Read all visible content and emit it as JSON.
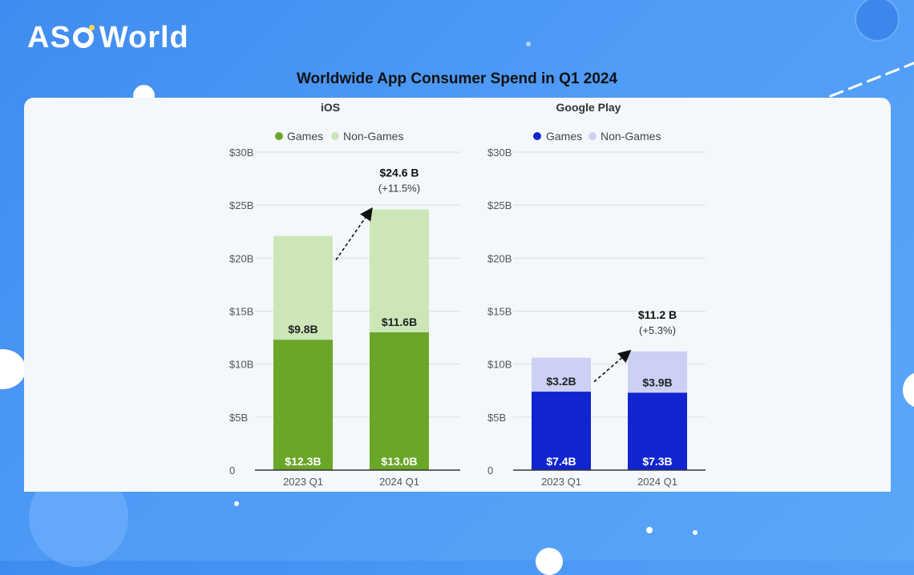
{
  "brand": {
    "logo_text_left": "AS",
    "logo_text_right": "World"
  },
  "title": "Worldwide App Consumer Spend in Q1 2024",
  "colors": {
    "ios_games": "#6aa628",
    "ios_non_games": "#cde6b8",
    "gp_games": "#1024d0",
    "gp_non_games": "#cdd0f5"
  },
  "chart_data": [
    {
      "type": "bar",
      "stacked": true,
      "title": "iOS",
      "categories": [
        "2023 Q1",
        "2024 Q1"
      ],
      "ylim": [
        0,
        30
      ],
      "yticks": [
        0,
        5,
        10,
        15,
        20,
        25,
        30
      ],
      "ytick_labels": [
        "0",
        "$5B",
        "$10B",
        "$15B",
        "$20B",
        "$25B",
        "$30B"
      ],
      "grid": true,
      "legend": "top",
      "series": [
        {
          "name": "Games",
          "values": [
            12.3,
            13.0
          ],
          "labels": [
            "$12.3B",
            "$13.0B"
          ]
        },
        {
          "name": "Non-Games",
          "values": [
            9.8,
            11.6
          ],
          "labels": [
            "$9.8B",
            "$11.6B"
          ]
        }
      ],
      "annotation": {
        "total": "$24.6 B",
        "change": "(+11.5%)"
      }
    },
    {
      "type": "bar",
      "stacked": true,
      "title": "Google Play",
      "categories": [
        "2023 Q1",
        "2024 Q1"
      ],
      "ylim": [
        0,
        30
      ],
      "yticks": [
        0,
        5,
        10,
        15,
        20,
        25,
        30
      ],
      "ytick_labels": [
        "0",
        "$5B",
        "$10B",
        "$15B",
        "$20B",
        "$25B",
        "$30B"
      ],
      "grid": true,
      "legend": "top",
      "series": [
        {
          "name": "Games",
          "values": [
            7.4,
            7.3
          ],
          "labels": [
            "$7.4B",
            "$7.3B"
          ]
        },
        {
          "name": "Non-Games",
          "values": [
            3.2,
            3.9
          ],
          "labels": [
            "$3.2B",
            "$3.9B"
          ]
        }
      ],
      "annotation": {
        "total": "$11.2 B",
        "change": "(+5.3%)"
      }
    }
  ]
}
